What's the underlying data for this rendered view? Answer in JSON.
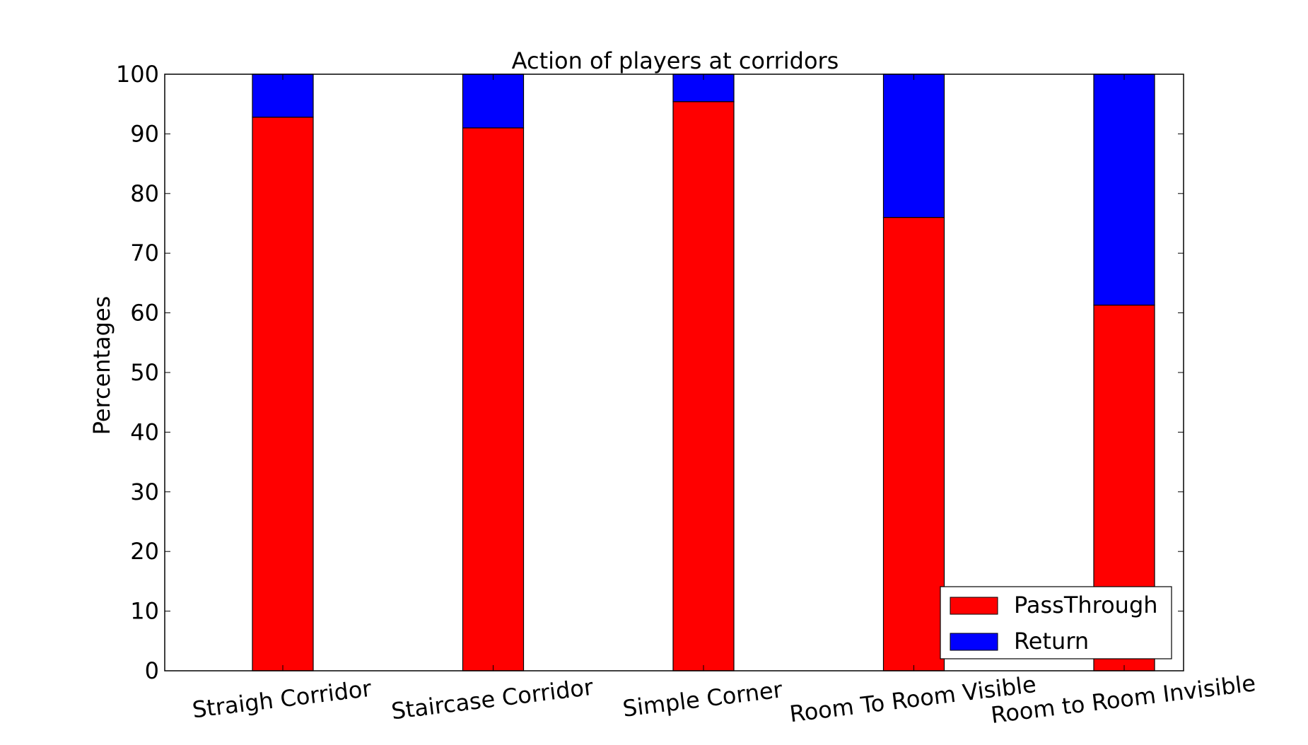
{
  "chart_data": {
    "type": "bar",
    "stacked": true,
    "title": "Action of players at corridors",
    "xlabel": "",
    "ylabel": "Percentages",
    "ylim": [
      0,
      100
    ],
    "yticks": [
      0,
      10,
      20,
      30,
      40,
      50,
      60,
      70,
      80,
      90,
      100
    ],
    "grid": false,
    "legend_position": "bottom-right",
    "categories": [
      "Straigh Corridor",
      "Staircase Corridor",
      "Simple Corner",
      "Room To Room Visible",
      "Room to Room Invisible"
    ],
    "series": [
      {
        "name": "PassThrough",
        "color": "#ff0000",
        "values": [
          92.8,
          91.0,
          95.4,
          76.0,
          61.3
        ]
      },
      {
        "name": "Return",
        "color": "#0000ff",
        "values": [
          7.2,
          9.0,
          4.6,
          24.0,
          38.7
        ]
      }
    ]
  }
}
